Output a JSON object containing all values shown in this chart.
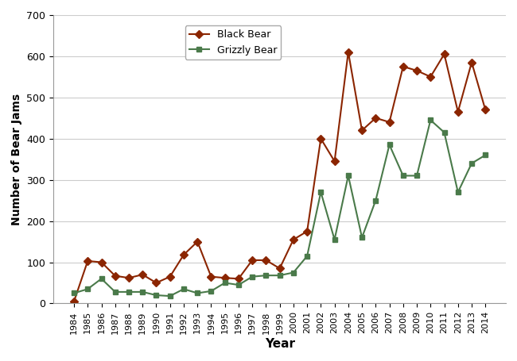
{
  "years": [
    1984,
    1985,
    1986,
    1987,
    1988,
    1989,
    1990,
    1991,
    1992,
    1993,
    1994,
    1995,
    1996,
    1997,
    1998,
    1999,
    2000,
    2001,
    2002,
    2003,
    2004,
    2005,
    2006,
    2007,
    2008,
    2009,
    2010,
    2011,
    2012,
    2013,
    2014
  ],
  "black_bear": [
    5,
    103,
    100,
    67,
    62,
    70,
    50,
    65,
    118,
    150,
    65,
    62,
    60,
    105,
    105,
    85,
    155,
    175,
    400,
    345,
    610,
    420,
    450,
    440,
    575,
    565,
    550,
    605,
    465,
    585,
    470
  ],
  "grizzly_bear": [
    25,
    35,
    60,
    28,
    28,
    28,
    20,
    18,
    35,
    25,
    30,
    50,
    45,
    65,
    68,
    68,
    75,
    115,
    270,
    155,
    310,
    160,
    250,
    385,
    310,
    310,
    445,
    415,
    270,
    340,
    360
  ],
  "black_bear_color": "#8B2500",
  "grizzly_bear_color": "#4a7a4a",
  "marker_black": "D",
  "marker_grizzly": "s",
  "xlabel": "Year",
  "ylabel": "Number of Bear Jams",
  "ylim": [
    0,
    700
  ],
  "yticks": [
    0,
    100,
    200,
    300,
    400,
    500,
    600,
    700
  ],
  "legend_black": "Black Bear",
  "legend_grizzly": "Grizzly Bear",
  "background_color": "#ffffff",
  "grid_color": "#cccccc"
}
